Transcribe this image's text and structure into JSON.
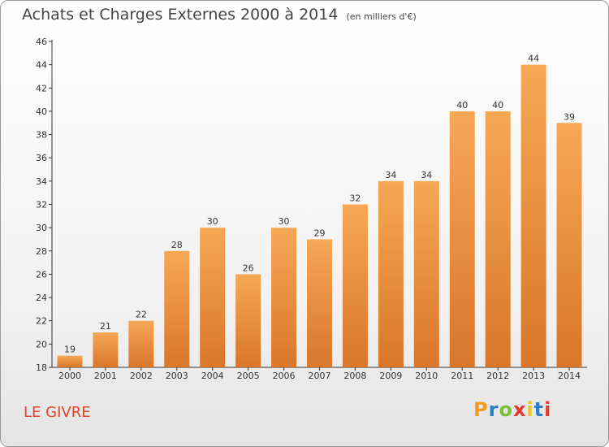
{
  "title": "Achats et Charges Externes 2000 à 2014",
  "unit_label": "(en milliers d'€)",
  "commune": "LE GIVRE",
  "logo": {
    "letters": [
      "P",
      "r",
      "o",
      "x",
      "i",
      "t",
      "i"
    ],
    "colors": [
      "#f29a1d",
      "#2a7fc7",
      "#7bbf3a",
      "#e23a2e",
      "#f2c21d",
      "#2a7fc7",
      "#e23a2e"
    ]
  },
  "colors": {
    "bar_light": "#f6a855",
    "bar_dark": "#d9762a",
    "title_text": "#444444",
    "commune_text": "#e0452d"
  },
  "chart_data": {
    "type": "bar",
    "categories": [
      "2000",
      "2001",
      "2002",
      "2003",
      "2004",
      "2005",
      "2006",
      "2007",
      "2008",
      "2009",
      "2010",
      "2011",
      "2012",
      "2013",
      "2014"
    ],
    "values": [
      19,
      21,
      22,
      28,
      30,
      26,
      30,
      29,
      32,
      34,
      34,
      40,
      40,
      44,
      39
    ],
    "ylim": [
      18,
      46
    ],
    "yticks": [
      18,
      20,
      22,
      24,
      26,
      28,
      30,
      32,
      34,
      36,
      38,
      40,
      42,
      44,
      46
    ],
    "grid": false,
    "data_labels": true
  }
}
